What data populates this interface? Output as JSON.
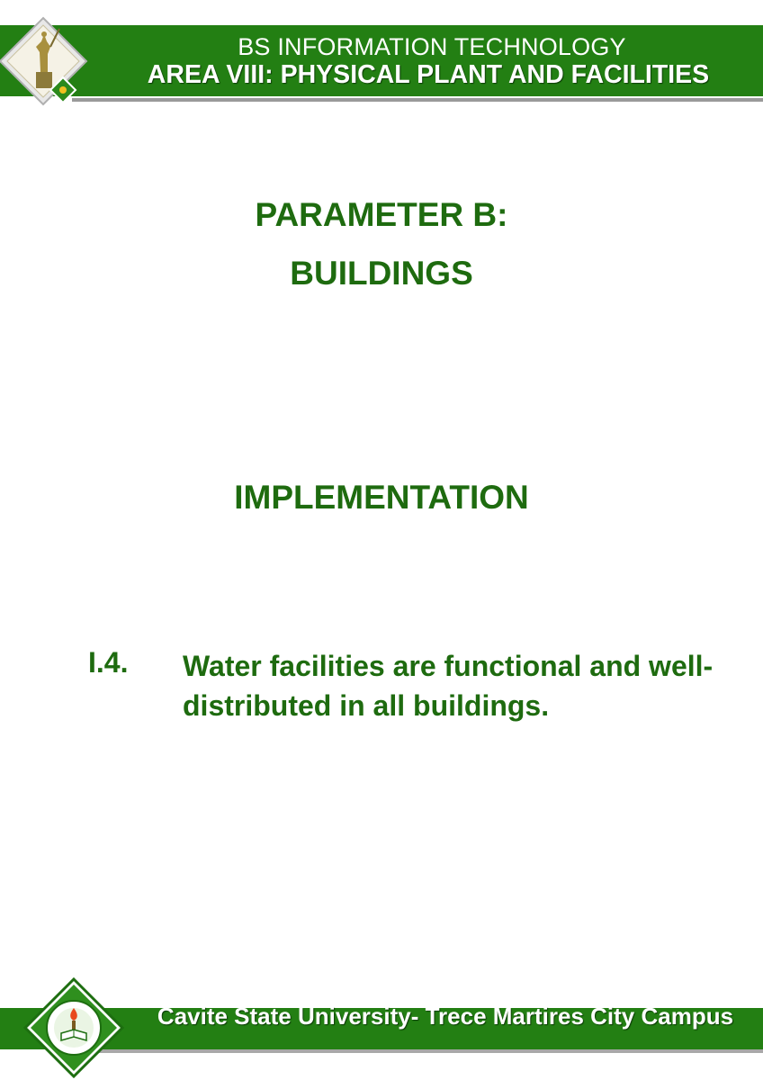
{
  "header": {
    "program": "BS INFORMATION TECHNOLOGY",
    "area": "AREA VIII: PHYSICAL PLANT AND FACILITIES"
  },
  "main": {
    "parameter": "PARAMETER B:",
    "parameter_name": "BUILDINGS",
    "section": "IMPLEMENTATION",
    "item": {
      "number": "I.4.",
      "text": "Water facilities are functional and well-distributed in all buildings."
    }
  },
  "footer": {
    "campus": "Cavite State University- Trece Martires City Campus"
  },
  "colors": {
    "band_green": "#237f13",
    "title_green": "#1e6b0f",
    "rule_gray": "#9a9a9a"
  }
}
